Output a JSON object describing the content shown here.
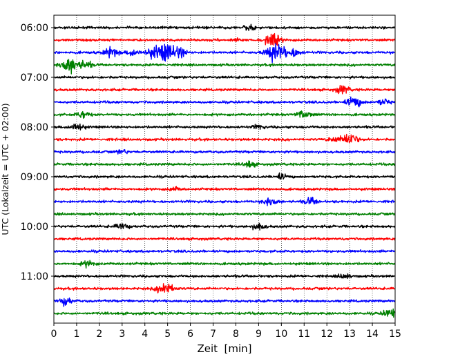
{
  "chart_data": {
    "type": "line",
    "title": "",
    "xlabel": "Zeit  [min]",
    "ylabel": "UTC (Lokalzeit = UTC + 02:00)",
    "xlim": [
      0,
      15
    ],
    "x_ticks": [
      0,
      1,
      2,
      3,
      4,
      5,
      6,
      7,
      8,
      9,
      10,
      11,
      12,
      13,
      14,
      15
    ],
    "x_grid": "dotted",
    "y_tick_labels": [
      "06:00",
      "07:00",
      "08:00",
      "09:00",
      "10:00",
      "11:00"
    ],
    "trace_start": "06:00",
    "trace_interval_min": 15,
    "trace_count": 24,
    "trace_colors": [
      "#000000",
      "#ff0000",
      "#0000ff",
      "#008000"
    ],
    "events": [
      {
        "trace": 0,
        "t": 8.6,
        "amp": 0.6
      },
      {
        "trace": 1,
        "t": 9.6,
        "amp": 1.6
      },
      {
        "trace": 1,
        "t": 8.0,
        "amp": 0.4
      },
      {
        "trace": 2,
        "t": 2.5,
        "amp": 1.2
      },
      {
        "trace": 2,
        "t": 3.5,
        "amp": 0.9
      },
      {
        "trace": 2,
        "t": 4.3,
        "amp": 1.1
      },
      {
        "trace": 2,
        "t": 4.9,
        "amp": 2.2
      },
      {
        "trace": 2,
        "t": 5.5,
        "amp": 1.2
      },
      {
        "trace": 2,
        "t": 9.8,
        "amp": 2.5
      },
      {
        "trace": 2,
        "t": 10.6,
        "amp": 0.9
      },
      {
        "trace": 3,
        "t": 0.7,
        "amp": 2.0
      },
      {
        "trace": 3,
        "t": 1.4,
        "amp": 0.9
      },
      {
        "trace": 5,
        "t": 12.7,
        "amp": 1.0
      },
      {
        "trace": 6,
        "t": 13.2,
        "amp": 1.4
      },
      {
        "trace": 6,
        "t": 14.5,
        "amp": 0.8
      },
      {
        "trace": 7,
        "t": 1.3,
        "amp": 0.9
      },
      {
        "trace": 7,
        "t": 11.0,
        "amp": 1.1
      },
      {
        "trace": 8,
        "t": 1.0,
        "amp": 1.1
      },
      {
        "trace": 8,
        "t": 9.0,
        "amp": 0.5
      },
      {
        "trace": 9,
        "t": 13.0,
        "amp": 1.6
      },
      {
        "trace": 9,
        "t": 12.3,
        "amp": 0.6
      },
      {
        "trace": 10,
        "t": 3.0,
        "amp": 0.5
      },
      {
        "trace": 11,
        "t": 8.6,
        "amp": 0.8
      },
      {
        "trace": 12,
        "t": 10.0,
        "amp": 0.7
      },
      {
        "trace": 13,
        "t": 5.3,
        "amp": 0.5
      },
      {
        "trace": 14,
        "t": 9.5,
        "amp": 1.1
      },
      {
        "trace": 14,
        "t": 11.3,
        "amp": 0.9
      },
      {
        "trace": 16,
        "t": 3.0,
        "amp": 0.9
      },
      {
        "trace": 16,
        "t": 9.0,
        "amp": 0.9
      },
      {
        "trace": 19,
        "t": 1.5,
        "amp": 0.8
      },
      {
        "trace": 20,
        "t": 12.8,
        "amp": 0.7
      },
      {
        "trace": 21,
        "t": 4.9,
        "amp": 1.7
      },
      {
        "trace": 22,
        "t": 0.5,
        "amp": 1.0
      },
      {
        "trace": 23,
        "t": 14.8,
        "amp": 1.2
      }
    ]
  }
}
